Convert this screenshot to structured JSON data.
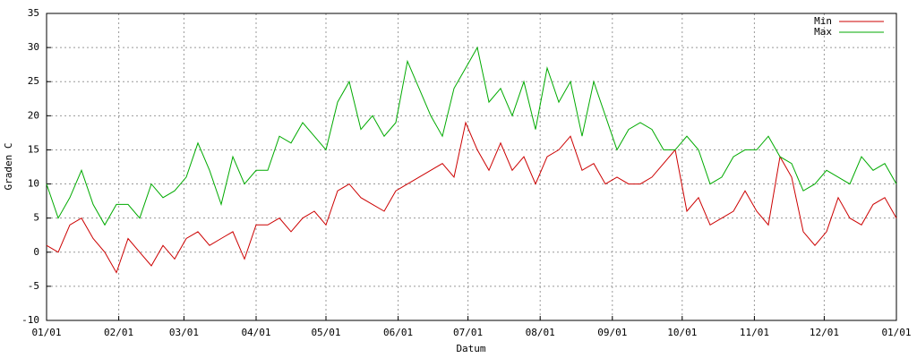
{
  "chart_data": {
    "type": "line",
    "xlabel": "Datum",
    "ylabel": "Graden C",
    "x": [
      0,
      5,
      10,
      15,
      20,
      25,
      30,
      35,
      40,
      45,
      50,
      55,
      60,
      65,
      70,
      75,
      80,
      85,
      90,
      95,
      100,
      105,
      110,
      115,
      120,
      125,
      130,
      135,
      140,
      145,
      150,
      155,
      160,
      165,
      170,
      175,
      180,
      185,
      190,
      195,
      200,
      205,
      210,
      215,
      220,
      225,
      230,
      235,
      240,
      245,
      250,
      255,
      260,
      265,
      270,
      275,
      280,
      285,
      290,
      295,
      300,
      305,
      310,
      315,
      320,
      325,
      330,
      335,
      340,
      345,
      350,
      355,
      360,
      365
    ],
    "series": [
      {
        "name": "Min",
        "color": "#cc0000",
        "values": [
          1,
          0,
          4,
          5,
          2,
          0,
          -3,
          2,
          0,
          -2,
          1,
          -1,
          2,
          3,
          1,
          2,
          3,
          -1,
          4,
          4,
          5,
          3,
          5,
          6,
          4,
          9,
          10,
          8,
          7,
          6,
          9,
          10,
          11,
          12,
          13,
          11,
          19,
          15,
          12,
          16,
          12,
          14,
          10,
          14,
          15,
          17,
          12,
          13,
          10,
          11,
          10,
          10,
          11,
          13,
          15,
          6,
          8,
          4,
          5,
          6,
          9,
          6,
          4,
          14,
          11,
          3,
          1,
          3,
          8,
          5,
          4,
          7,
          8,
          5
        ]
      },
      {
        "name": "Max",
        "color": "#00aa00",
        "values": [
          10,
          5,
          8,
          12,
          7,
          4,
          7,
          7,
          5,
          10,
          8,
          9,
          11,
          16,
          12,
          7,
          14,
          10,
          12,
          12,
          17,
          16,
          19,
          17,
          15,
          22,
          25,
          18,
          20,
          17,
          19,
          28,
          24,
          20,
          17,
          24,
          27,
          30,
          22,
          24,
          20,
          25,
          18,
          27,
          22,
          25,
          17,
          25,
          20,
          15,
          18,
          19,
          18,
          15,
          15,
          17,
          15,
          10,
          11,
          14,
          15,
          15,
          17,
          14,
          13,
          9,
          10,
          12,
          11,
          10,
          14,
          12,
          13,
          10
        ]
      }
    ],
    "xlim": [
      0,
      365
    ],
    "xticks": [
      {
        "value": 0,
        "label": "01/01"
      },
      {
        "value": 31,
        "label": "02/01"
      },
      {
        "value": 59,
        "label": "03/01"
      },
      {
        "value": 90,
        "label": "04/01"
      },
      {
        "value": 120,
        "label": "05/01"
      },
      {
        "value": 151,
        "label": "06/01"
      },
      {
        "value": 181,
        "label": "07/01"
      },
      {
        "value": 212,
        "label": "08/01"
      },
      {
        "value": 243,
        "label": "09/01"
      },
      {
        "value": 273,
        "label": "10/01"
      },
      {
        "value": 304,
        "label": "11/01"
      },
      {
        "value": 334,
        "label": "12/01"
      },
      {
        "value": 365,
        "label": "01/01"
      }
    ],
    "ylim": [
      -10,
      35
    ],
    "yticks": [
      -10,
      -5,
      0,
      5,
      10,
      15,
      20,
      25,
      30,
      35
    ],
    "grid": true,
    "legend": "top-right"
  }
}
